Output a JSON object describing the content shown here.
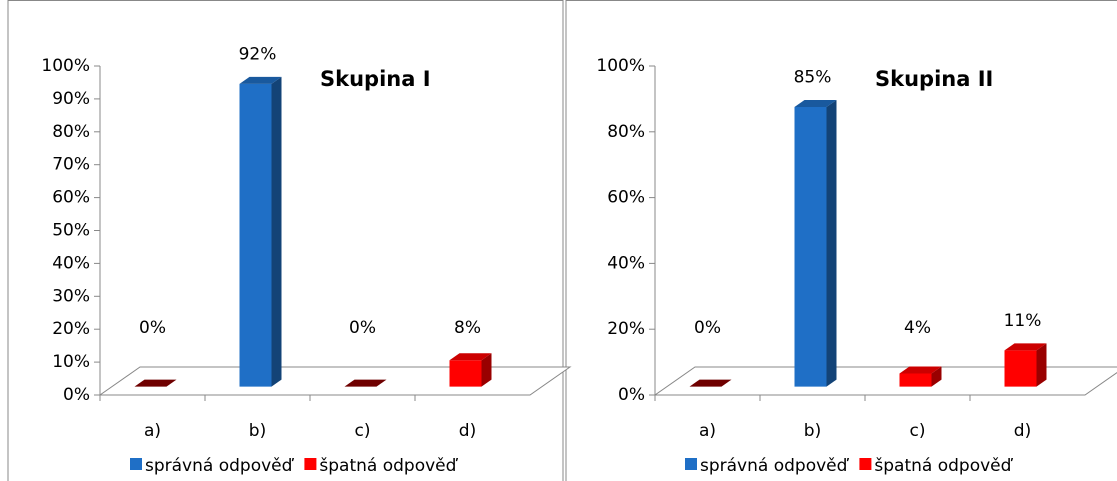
{
  "chart_data": [
    {
      "type": "bar3d",
      "title": "Skupina I",
      "categories": [
        "a)",
        "b)",
        "c)",
        "d)"
      ],
      "values": [
        0,
        92,
        0,
        8
      ],
      "value_labels": [
        "0%",
        "92%",
        "0%",
        "8%"
      ],
      "colors": [
        "#8b0000",
        "#1f6fc6",
        "#8b0000",
        "#ff0000"
      ],
      "legend": [
        {
          "name": "správná odpověď",
          "color": "#1f6fc6"
        },
        {
          "name": "špatná odpověď",
          "color": "#ff0000"
        }
      ],
      "ylim": [
        0,
        100
      ],
      "yticks": [
        {
          "value": 0,
          "label": "0%"
        },
        {
          "value": 10,
          "label": "10%"
        },
        {
          "value": 20,
          "label": "20%"
        },
        {
          "value": 30,
          "label": "30%"
        },
        {
          "value": 40,
          "label": "40%"
        },
        {
          "value": 50,
          "label": "50%"
        },
        {
          "value": 60,
          "label": "60%"
        },
        {
          "value": 70,
          "label": "70%"
        },
        {
          "value": 80,
          "label": "80%"
        },
        {
          "value": 90,
          "label": "90%"
        },
        {
          "value": 100,
          "label": "100%"
        }
      ]
    },
    {
      "type": "bar3d",
      "title": "Skupina II",
      "categories": [
        "a)",
        "b)",
        "c)",
        "d)"
      ],
      "values": [
        0,
        85,
        4,
        11
      ],
      "value_labels": [
        "0%",
        "85%",
        "4%",
        "11%"
      ],
      "colors": [
        "#8b0000",
        "#1f6fc6",
        "#ff0000",
        "#ff0000"
      ],
      "legend": [
        {
          "name": "správná odpověď",
          "color": "#1f6fc6"
        },
        {
          "name": "špatná odpověď",
          "color": "#ff0000"
        }
      ],
      "ylim": [
        0,
        100
      ],
      "yticks": [
        {
          "value": 0,
          "label": "0%"
        },
        {
          "value": 20,
          "label": "20%"
        },
        {
          "value": 40,
          "label": "40%"
        },
        {
          "value": 60,
          "label": "60%"
        },
        {
          "value": 80,
          "label": "80%"
        },
        {
          "value": 100,
          "label": "100%"
        }
      ]
    }
  ]
}
